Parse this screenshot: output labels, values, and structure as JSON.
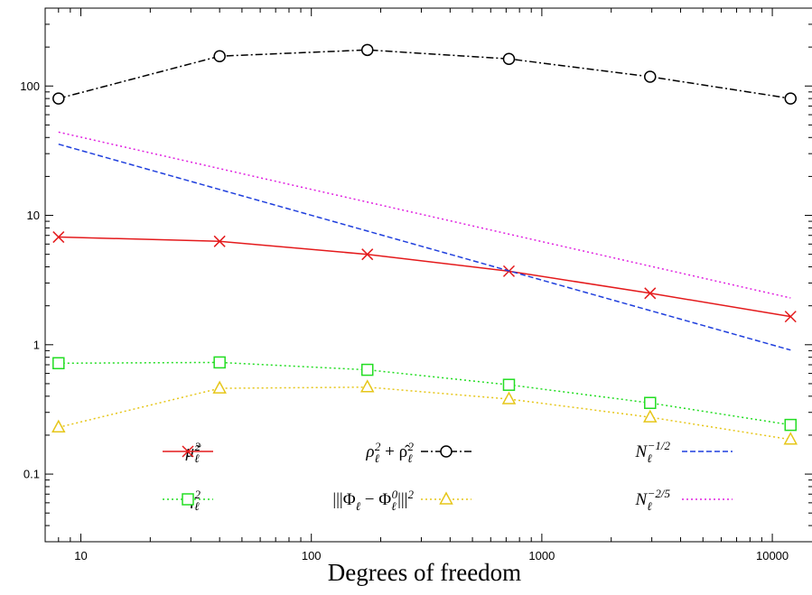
{
  "chart_data": {
    "type": "line",
    "xlabel": "Degrees of freedom",
    "ylabel": "",
    "xscale": "log",
    "yscale": "log",
    "xlim": [
      7,
      15000
    ],
    "ylim": [
      0.03,
      400
    ],
    "grid": false,
    "legend_position": "bottom, inside plot, 3 columns x 2 rows",
    "x_ticks": [
      10,
      100,
      1000,
      10000
    ],
    "x_tick_labels": [
      "10",
      "100",
      "1000",
      "10000"
    ],
    "y_ticks": [
      0.1,
      1,
      10,
      100
    ],
    "y_tick_labels": [
      "0.1",
      "1",
      "10",
      "100"
    ],
    "series": [
      {
        "name": "μ̃ℓ²",
        "color": "#e41a1c",
        "line": "solid",
        "marker": "cross",
        "x": [
          8,
          40,
          175,
          720,
          2950,
          12000
        ],
        "y": [
          6.8,
          6.3,
          5.0,
          3.7,
          2.5,
          1.65
        ]
      },
      {
        "name": "ηℓ²",
        "color": "#22dd22",
        "line": "dotted",
        "marker": "square",
        "x": [
          8,
          40,
          175,
          720,
          2950,
          12000
        ],
        "y": [
          0.72,
          0.73,
          0.64,
          0.49,
          0.355,
          0.24
        ]
      },
      {
        "name": "ρℓ² + ρ̂ℓ²",
        "color": "#000000",
        "line": "dashdot",
        "marker": "circle",
        "x": [
          8,
          40,
          175,
          720,
          2950,
          12000
        ],
        "y": [
          80,
          170,
          190,
          162,
          118,
          80
        ]
      },
      {
        "name": "|||Φℓ − Φℓ⁰|||²",
        "color": "#e6c619",
        "line": "dotted",
        "marker": "triangle",
        "x": [
          8,
          40,
          175,
          720,
          2950,
          12000
        ],
        "y": [
          0.23,
          0.46,
          0.47,
          0.38,
          0.275,
          0.185
        ]
      },
      {
        "name": "Nℓ^−1/2",
        "color": "#1f3fdd",
        "line": "dashed",
        "marker": "none",
        "x": [
          8,
          12000
        ],
        "y": [
          35.5,
          0.91
        ]
      },
      {
        "name": "Nℓ^−2/5",
        "color": "#e020e0",
        "line": "dotted",
        "marker": "none",
        "x": [
          8,
          12000
        ],
        "y": [
          44,
          2.3
        ]
      }
    ]
  }
}
